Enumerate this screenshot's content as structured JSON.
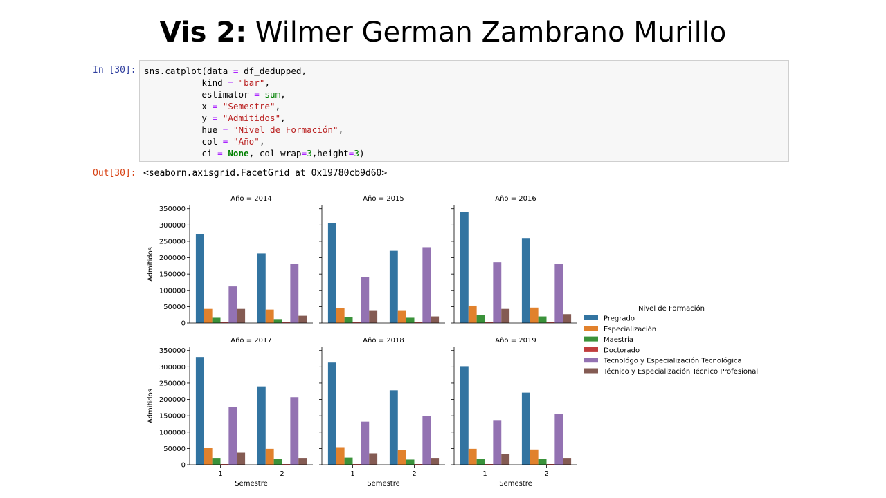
{
  "slide": {
    "title_bold": "Vis 2:",
    "title_rest": " Wilmer German Zambrano Murillo"
  },
  "notebook": {
    "in_prompt": "In [30]:",
    "out_prompt": "Out[30]:",
    "output_text": "<seaborn.axisgrid.FacetGrid at 0x19780cb9d60>",
    "code_lines": [
      [
        [
          "sns.catplot(data ",
          ""
        ],
        [
          "=",
          "op"
        ],
        [
          " df_dedupped,",
          ""
        ]
      ],
      [
        [
          "           kind ",
          ""
        ],
        [
          "=",
          "op"
        ],
        [
          " ",
          ""
        ],
        [
          "\"bar\"",
          "str"
        ],
        [
          ",",
          ""
        ]
      ],
      [
        [
          "           estimator ",
          ""
        ],
        [
          "=",
          "op"
        ],
        [
          " ",
          ""
        ],
        [
          "sum",
          "num"
        ],
        [
          ",",
          ""
        ]
      ],
      [
        [
          "           x ",
          ""
        ],
        [
          "=",
          "op"
        ],
        [
          " ",
          ""
        ],
        [
          "\"Semestre\"",
          "str"
        ],
        [
          ",",
          ""
        ]
      ],
      [
        [
          "           y ",
          ""
        ],
        [
          "=",
          "op"
        ],
        [
          " ",
          ""
        ],
        [
          "\"Admitidos\"",
          "str"
        ],
        [
          ",",
          ""
        ]
      ],
      [
        [
          "           hue ",
          ""
        ],
        [
          "=",
          "op"
        ],
        [
          " ",
          ""
        ],
        [
          "\"Nivel de Formación\"",
          "str"
        ],
        [
          ",",
          ""
        ]
      ],
      [
        [
          "           col ",
          ""
        ],
        [
          "=",
          "op"
        ],
        [
          " ",
          ""
        ],
        [
          "\"Año\"",
          "str"
        ],
        [
          ",",
          ""
        ]
      ],
      [
        [
          "           ci ",
          ""
        ],
        [
          "=",
          "op"
        ],
        [
          " ",
          ""
        ],
        [
          "None",
          "kw"
        ],
        [
          ", col_wrap",
          ""
        ],
        [
          "=",
          "op"
        ],
        [
          "3",
          "num"
        ],
        [
          ",height",
          ""
        ],
        [
          "=",
          "op"
        ],
        [
          "3",
          "num"
        ],
        [
          ")",
          ""
        ]
      ]
    ]
  },
  "chart_data": {
    "type": "bar",
    "categories": [
      "1",
      "2"
    ],
    "xlabel": "Semestre",
    "ylabel": "Admitidos",
    "ylim": [
      0,
      360000
    ],
    "yticks": [
      0,
      50000,
      100000,
      150000,
      200000,
      250000,
      300000,
      350000
    ],
    "legend": {
      "title": "Nivel de Formación",
      "placement": "right",
      "entries": [
        "Pregrado",
        "Especialización",
        "Maestria",
        "Doctorado",
        "Tecnológo y Especialización Tecnológica",
        "Técnico y Especialización Técnico Profesional"
      ]
    },
    "colors": [
      "#3274a1",
      "#e1812c",
      "#3a923a",
      "#c03d3e",
      "#9372b2",
      "#845b53"
    ],
    "facets": [
      {
        "title": "Año = 2014",
        "values": [
          [
            272000,
            213000
          ],
          [
            43000,
            41000
          ],
          [
            16000,
            12000
          ],
          [
            2000,
            2000
          ],
          [
            112000,
            180000
          ],
          [
            43000,
            22000
          ]
        ]
      },
      {
        "title": "Año = 2015",
        "values": [
          [
            305000,
            221000
          ],
          [
            45000,
            39000
          ],
          [
            18000,
            16000
          ],
          [
            2000,
            2000
          ],
          [
            141000,
            232000
          ],
          [
            39000,
            20000
          ]
        ]
      },
      {
        "title": "Año = 2016",
        "values": [
          [
            340000,
            260000
          ],
          [
            53000,
            47000
          ],
          [
            24000,
            20000
          ],
          [
            2000,
            2000
          ],
          [
            186000,
            180000
          ],
          [
            43000,
            27000
          ]
        ]
      },
      {
        "title": "Año = 2017",
        "values": [
          [
            330000,
            240000
          ],
          [
            51000,
            49000
          ],
          [
            21000,
            18000
          ],
          [
            2000,
            2000
          ],
          [
            176000,
            207000
          ],
          [
            37000,
            21000
          ]
        ]
      },
      {
        "title": "Año = 2018",
        "values": [
          [
            313000,
            228000
          ],
          [
            54000,
            45000
          ],
          [
            22000,
            16000
          ],
          [
            2000,
            2000
          ],
          [
            132000,
            149000
          ],
          [
            35000,
            21000
          ]
        ]
      },
      {
        "title": "Año = 2019",
        "values": [
          [
            302000,
            221000
          ],
          [
            49000,
            47000
          ],
          [
            18000,
            18000
          ],
          [
            2000,
            2000
          ],
          [
            137000,
            155000
          ],
          [
            32000,
            21000
          ]
        ]
      }
    ]
  }
}
